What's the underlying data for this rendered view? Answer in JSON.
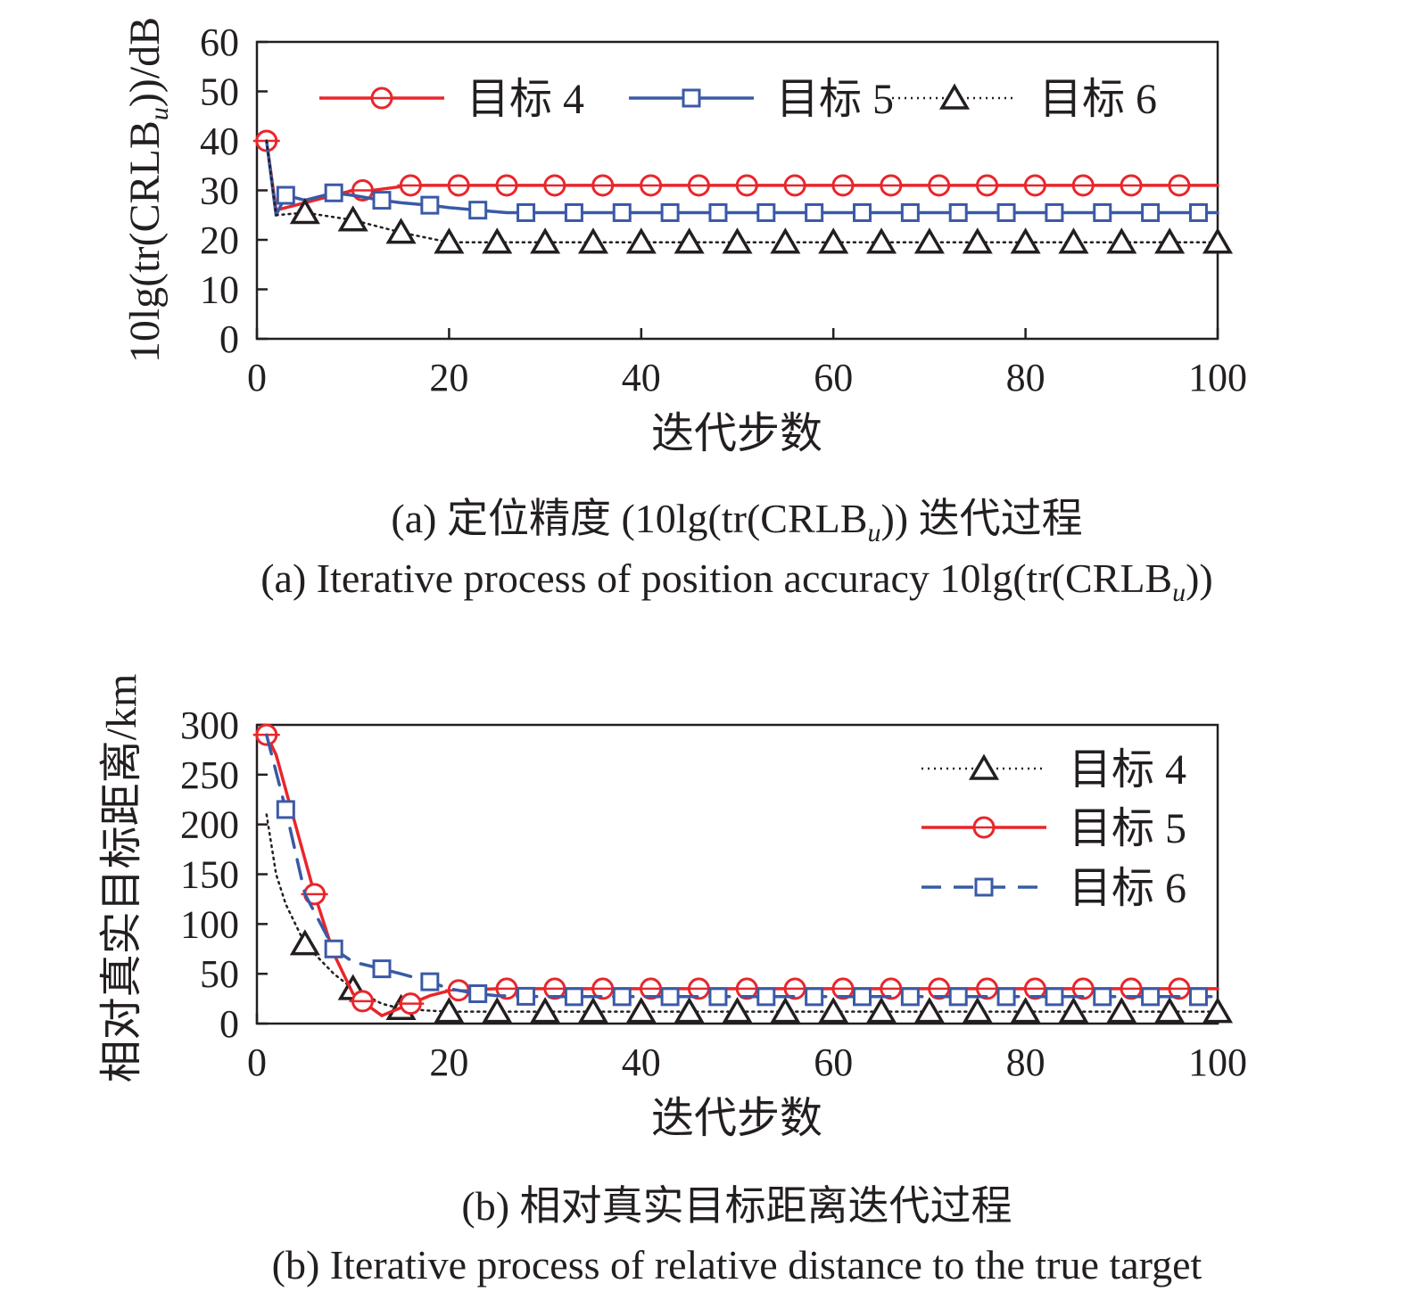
{
  "colors": {
    "red": "#e8262b",
    "blue": "#3a5aa6",
    "black": "#231f20"
  },
  "chart_data": [
    {
      "id": "a",
      "type": "line",
      "xlabel": "迭代步数",
      "ylabel_main": "10lg(tr(CRLB",
      "ylabel_sub": "u",
      "ylabel_end": "))/dB",
      "xlim": [
        0,
        100
      ],
      "ylim": [
        0,
        60
      ],
      "xticks": [
        0,
        20,
        40,
        60,
        80,
        100
      ],
      "yticks": [
        0,
        10,
        20,
        30,
        40,
        50,
        60
      ],
      "legend_position": "top",
      "series": [
        {
          "name": "目标 4",
          "color": "#e8262b",
          "marker": "circle",
          "dash": "solid",
          "x": [
            1,
            2,
            4,
            6,
            8,
            10,
            12,
            14,
            16,
            20,
            30,
            40,
            50,
            60,
            70,
            80,
            90,
            100
          ],
          "y": [
            40,
            26,
            27,
            28,
            29,
            30,
            30,
            30.5,
            31,
            31,
            31,
            31,
            31,
            31,
            31,
            31,
            31,
            31
          ],
          "marker_x": [
            1,
            11,
            16,
            21,
            26,
            31,
            36,
            41,
            46,
            51,
            56,
            61,
            66,
            71,
            76,
            81,
            86,
            91,
            96
          ]
        },
        {
          "name": "目标 5",
          "color": "#3a5aa6",
          "marker": "square",
          "dash": "solid",
          "x": [
            1,
            2,
            3,
            5,
            8,
            10,
            13,
            15,
            18,
            20,
            23,
            26,
            30,
            40,
            50,
            60,
            70,
            80,
            90,
            100
          ],
          "y": [
            40,
            25,
            29,
            28,
            29.5,
            29,
            28,
            27.5,
            27,
            26.5,
            26,
            25.5,
            25.5,
            25.5,
            25.5,
            25.5,
            25.5,
            25.5,
            25.5,
            25.5
          ],
          "marker_x": [
            3,
            8,
            13,
            18,
            23,
            28,
            33,
            38,
            43,
            48,
            53,
            58,
            63,
            68,
            73,
            78,
            83,
            88,
            93,
            98
          ]
        },
        {
          "name": "目标 6",
          "color": "#231f20",
          "marker": "triangle",
          "dash": "dotted",
          "x": [
            1,
            2,
            5,
            10,
            15,
            20,
            25,
            30,
            40,
            50,
            60,
            70,
            80,
            90,
            100
          ],
          "y": [
            40,
            25,
            25.5,
            24,
            21.5,
            19.5,
            19.5,
            19.5,
            19.5,
            19.5,
            19.5,
            19.5,
            19.5,
            19.5,
            19.5
          ],
          "marker_x": [
            5,
            10,
            15,
            20,
            25,
            30,
            35,
            40,
            45,
            50,
            55,
            60,
            65,
            70,
            75,
            80,
            85,
            90,
            95,
            100
          ]
        }
      ],
      "caption_cn_main": "(a) 定位精度 (10lg(tr(CRLB",
      "caption_cn_sub": "u",
      "caption_cn_end": ")) 迭代过程",
      "caption_en_main": "(a) Iterative process of position accuracy 10lg(tr(CRLB",
      "caption_en_sub": "u",
      "caption_en_end": "))"
    },
    {
      "id": "b",
      "type": "line",
      "xlabel": "迭代步数",
      "ylabel": "相对真实目标距离/km",
      "xlim": [
        0,
        100
      ],
      "ylim": [
        0,
        300
      ],
      "xticks": [
        0,
        20,
        40,
        60,
        80,
        100
      ],
      "yticks": [
        0,
        50,
        100,
        150,
        200,
        250,
        300
      ],
      "legend_position": "top-right",
      "series": [
        {
          "name": "目标 4",
          "color": "#231f20",
          "marker": "triangle",
          "dash": "dotted",
          "x": [
            1,
            2,
            3,
            5,
            8,
            10,
            13,
            15,
            18,
            20,
            30,
            40,
            50,
            60,
            70,
            80,
            90,
            100
          ],
          "y": [
            210,
            150,
            120,
            80,
            50,
            35,
            20,
            15,
            13,
            12,
            12,
            12,
            12,
            12,
            12,
            12,
            12,
            12
          ],
          "marker_x": [
            5,
            10,
            15,
            20,
            25,
            30,
            35,
            40,
            45,
            50,
            55,
            60,
            65,
            70,
            75,
            80,
            85,
            90,
            95,
            100
          ]
        },
        {
          "name": "目标 5",
          "color": "#e8262b",
          "marker": "circle",
          "dash": "solid",
          "x": [
            1,
            2,
            4,
            6,
            8,
            10,
            12,
            13,
            14,
            16,
            18,
            20,
            25,
            30,
            40,
            50,
            60,
            70,
            80,
            90,
            100
          ],
          "y": [
            290,
            270,
            200,
            130,
            70,
            30,
            15,
            8,
            12,
            20,
            28,
            33,
            35,
            35,
            35,
            35,
            35,
            35,
            35,
            35,
            35
          ],
          "marker_x": [
            1,
            6,
            11,
            16,
            21,
            26,
            31,
            36,
            41,
            46,
            51,
            56,
            61,
            66,
            71,
            76,
            81,
            86,
            91,
            96
          ]
        },
        {
          "name": "目标 6",
          "color": "#3a5aa6",
          "marker": "square",
          "dash": "dashed",
          "x": [
            1,
            3,
            5,
            8,
            10,
            13,
            15,
            18,
            20,
            23,
            25,
            30,
            40,
            50,
            60,
            70,
            80,
            90,
            100
          ],
          "y": [
            290,
            215,
            130,
            75,
            62,
            55,
            50,
            42,
            35,
            30,
            28,
            27,
            27,
            27,
            27,
            27,
            27,
            27,
            27
          ],
          "marker_x": [
            3,
            8,
            13,
            18,
            23,
            28,
            33,
            38,
            43,
            48,
            53,
            58,
            63,
            68,
            73,
            78,
            83,
            88,
            93,
            98
          ]
        }
      ],
      "caption_cn": "(b) 相对真实目标距离迭代过程",
      "caption_en": "(b) Iterative process of relative distance to the true target"
    }
  ]
}
